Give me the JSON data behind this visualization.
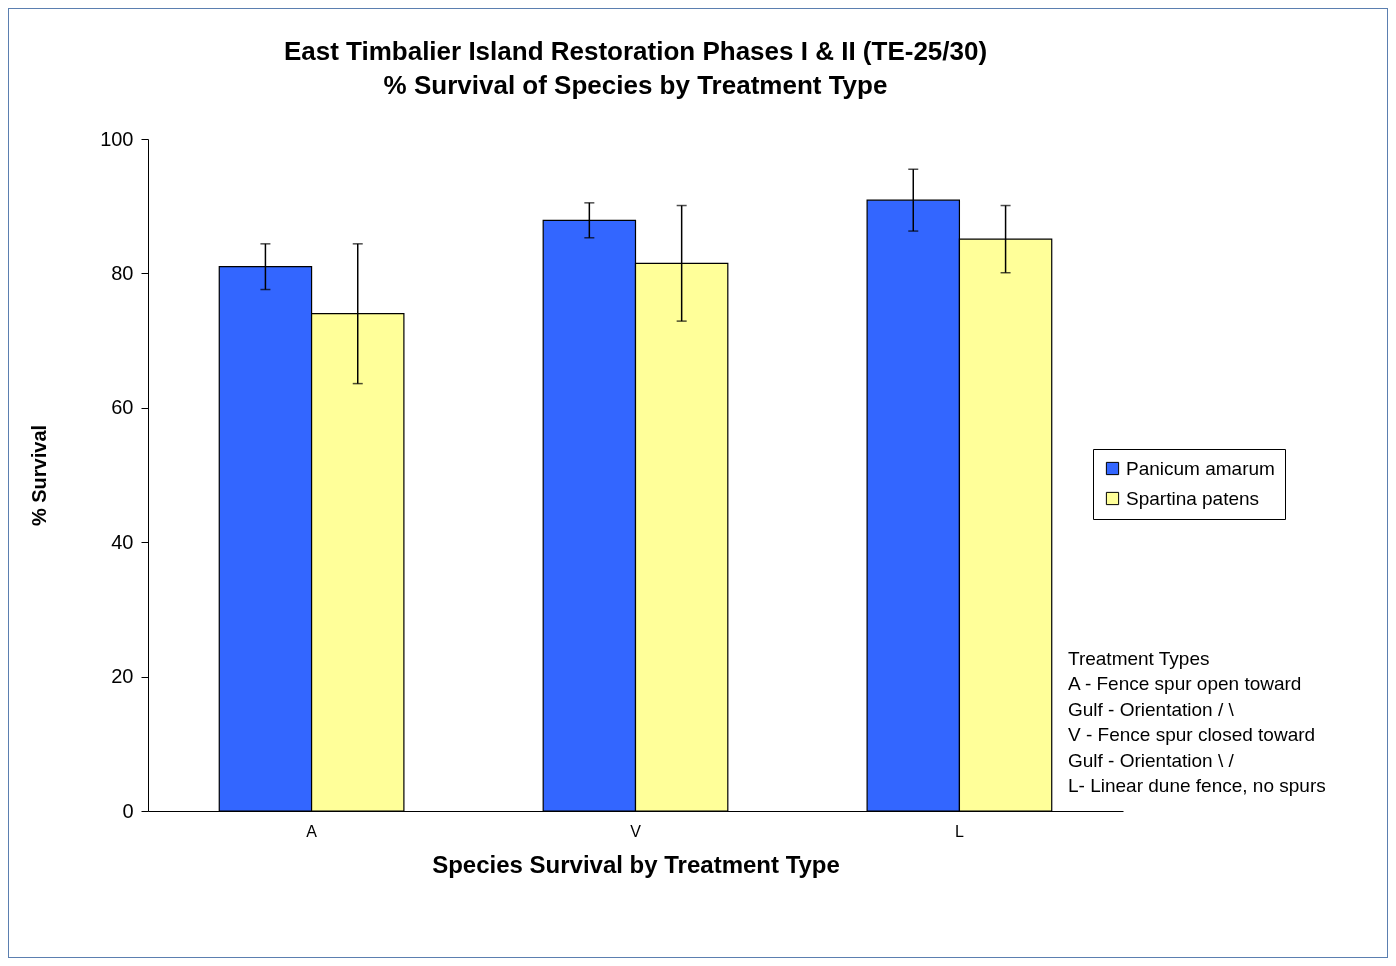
{
  "chart_data": {
    "type": "bar",
    "title": "East Timbalier Island Restoration Phases I & II (TE-25/30)",
    "subtitle": "% Survival of Species by Treatment Type",
    "xlabel": "Species Survival by Treatment Type",
    "ylabel": "% Survival",
    "categories": [
      "A",
      "V",
      "L"
    ],
    "series": [
      {
        "name": "Panicum amarum",
        "color": "#3366ff",
        "values": [
          81,
          87.9,
          90.9
        ],
        "errors": [
          3.4,
          2.6,
          4.6
        ]
      },
      {
        "name": "Spartina patens",
        "color": "#ffff99",
        "values": [
          74,
          81.5,
          85.1
        ],
        "errors": [
          10.4,
          8.6,
          5
        ]
      }
    ],
    "ylim": [
      0,
      100
    ],
    "yticks": [
      0,
      20,
      40,
      60,
      80,
      100
    ],
    "grid": false,
    "legend": "right",
    "annotations": [
      "Treatment Types",
      "A - Fence spur open toward",
      "Gulf - Orientation / \\",
      "V - Fence spur closed toward",
      "Gulf - Orientation \\ /",
      "L- Linear dune fence, no spurs"
    ]
  }
}
